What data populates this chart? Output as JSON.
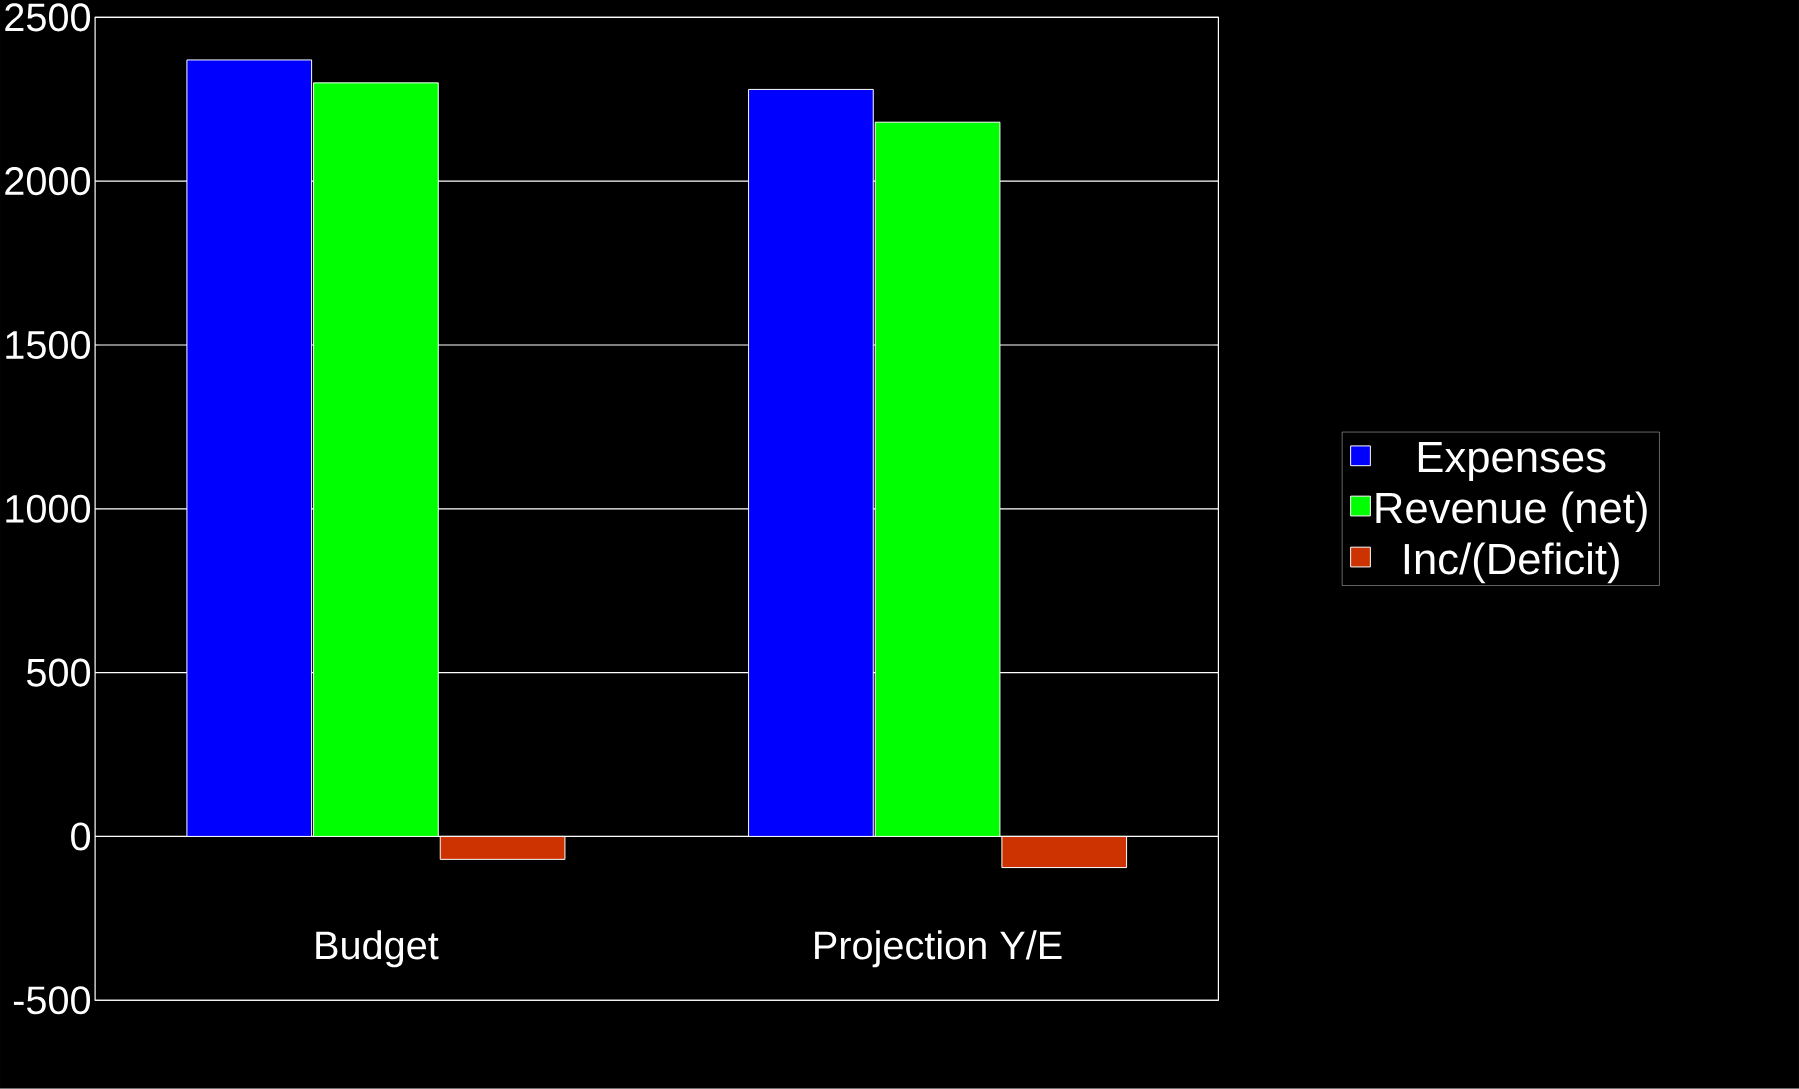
{
  "chart_data": {
    "type": "bar",
    "categories": [
      "Budget",
      "Projection Y/E"
    ],
    "series": [
      {
        "name": "Expenses",
        "color": "#0000ff",
        "values": [
          2370,
          2280
        ]
      },
      {
        "name": "Revenue (net)",
        "color": "#00ff00",
        "values": [
          2300,
          2180
        ]
      },
      {
        "name": "Inc/(Deficit)",
        "color": "#cc3300",
        "values": [
          -70,
          -95
        ]
      }
    ],
    "ylim": [
      -500,
      2500
    ],
    "yticks": [
      -500,
      0,
      500,
      1000,
      1500,
      2000,
      2500
    ],
    "grid": "y",
    "legend": "right"
  }
}
